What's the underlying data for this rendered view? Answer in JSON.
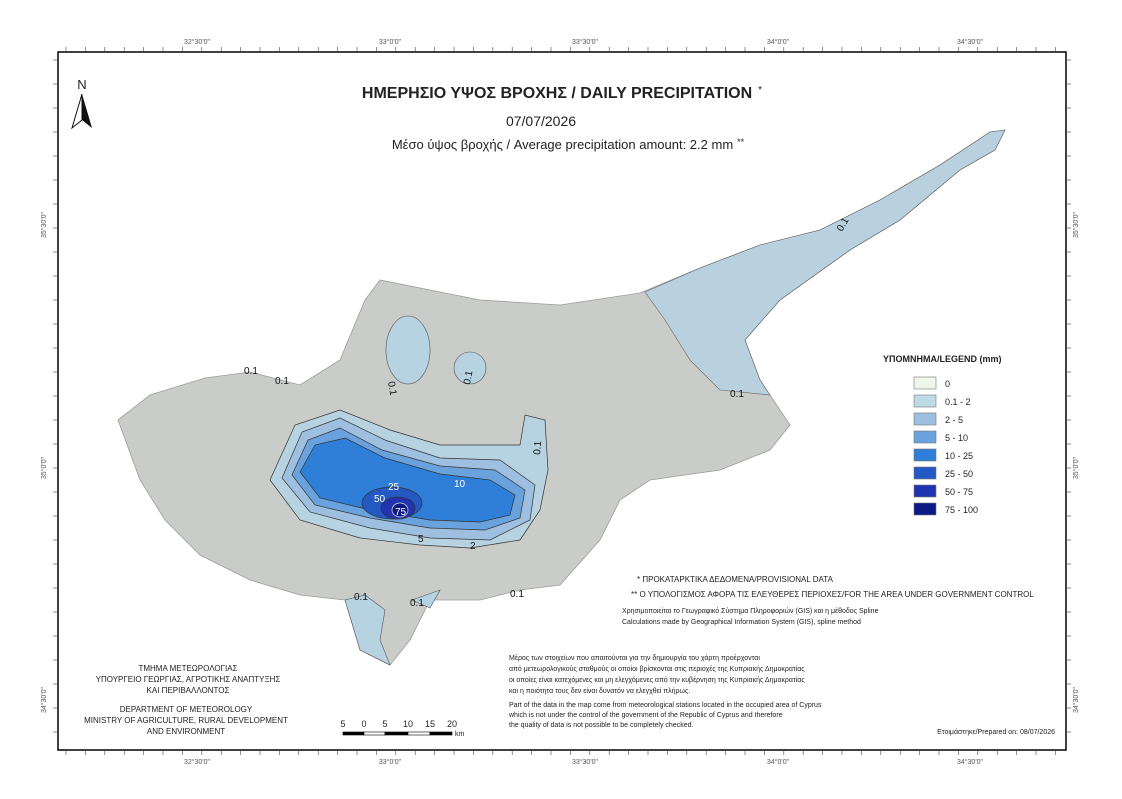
{
  "header": {
    "title": "ΗΜΕΡΗΣΙΟ ΥΨΟΣ ΒΡΟΧΗΣ / DAILY PRECIPITATION",
    "title_mark": "*",
    "date": "07/07/2026",
    "average": "Μέσο ύψος βροχής / Average precipitation amount: 2.2 mm",
    "average_mark": "**"
  },
  "north_arrow": "N",
  "coordinates": {
    "top": [
      "32°30'0\"",
      "33°0'0\"",
      "33°30'0\"",
      "34°0'0\"",
      "34°30'0\""
    ],
    "bottom": [
      "32°30'0\"",
      "33°0'0\"",
      "33°30'0\"",
      "34°0'0\"",
      "34°30'0\""
    ],
    "left": [
      "35°30'0\"",
      "35°0'0\"",
      "34°30'0\""
    ],
    "right": [
      "35°30'0\"",
      "35°0'0\"",
      "34°30'0\""
    ]
  },
  "legend": {
    "title": "ΥΠΟΜΝΗΜΑ/LEGEND (mm)",
    "items": [
      {
        "label": "0",
        "color": "#eef7ea"
      },
      {
        "label": "0.1 - 2",
        "color": "#bcdbe6"
      },
      {
        "label": "2 - 5",
        "color": "#9ebfe0"
      },
      {
        "label": "5 - 10",
        "color": "#6aa2dd"
      },
      {
        "label": "10 - 25",
        "color": "#2f7fd8"
      },
      {
        "label": "25 - 50",
        "color": "#2458c2"
      },
      {
        "label": "50 - 75",
        "color": "#2233b0"
      },
      {
        "label": "75 - 100",
        "color": "#0d1a85"
      }
    ]
  },
  "contour_labels": [
    "0.1",
    "0.1",
    "0.1",
    "0.1",
    "0.1",
    "0.1",
    "0.1",
    "0.1",
    "0.1",
    "10",
    "25",
    "50",
    "75",
    "5",
    "2",
    "0.1"
  ],
  "notes": {
    "provisional": "* ΠΡΟΚΑΤΑΡΚΤΙΚΑ ΔΕΔΟΜΕΝΑ/PROVISIONAL DATA",
    "government": "** Ο ΥΠΟΛΟΓΙΣΜΟΣ ΑΦΟΡΑ ΤΙΣ ΕΛΕΥΘΕΡΕΣ ΠΕΡΙΟΧΕΣ/FOR THE AREA UNDER GOVERNMENT CONTROL",
    "method_gr": "Χρησιμοποιείται το Γεωγραφικό Σύστημα Πληροφοριών (GIS) και η μέθοδος Spline",
    "method_en": "Calculations made by Geographical Information System (GIS), spline method",
    "occupied_gr": [
      "Μέρος των στοιχείων που απαιτούνται για την δημιουργία του χάρτη προέρχονται",
      "από μετεωρολογικούς σταθμούς οι οποίοι βρίσκονται στις περιοχές της Κυπριακής Δημοκρατίας",
      "οι οποίες είναι κατεχόμενες και μη ελεγχόμενες από την κυβέρνηση της Κυπριακής Δημοκρατίας",
      "και η ποιότητα τους δεν είναι δυνατόν να ελεγχθεί πλήρως."
    ],
    "occupied_en": [
      "Part of the data in the map come from meteorological stations located in the occupied area of Cyprus",
      "which is not under the control of the government of the Republic of Cyprus and therefore",
      "the quality of data is not possible to be completely checked."
    ],
    "prepared": "Ετοιμάστηκε/Prepared on: 08/07/2026"
  },
  "department": {
    "gr": [
      "ΤΜΗΜΑ ΜΕΤΕΩΡΟΛΟΓΙΑΣ",
      "ΥΠΟΥΡΓΕΙΟ ΓΕΩΡΓΙΑΣ, ΑΓΡΟΤΙΚΗΣ ΑΝΑΠΤΥΞΗΣ",
      "ΚΑΙ ΠΕΡΙΒΑΛΛΟΝΤΟΣ"
    ],
    "en": [
      "DEPARTMENT OF METEOROLOGY",
      "MINISTRY OF AGRICULTURE, RURAL DEVELOPMENT",
      "AND ENVIRONMENT"
    ]
  },
  "scale_bar": {
    "ticks": [
      "5",
      "0",
      "5",
      "10",
      "15",
      "20"
    ],
    "unit": "km"
  }
}
